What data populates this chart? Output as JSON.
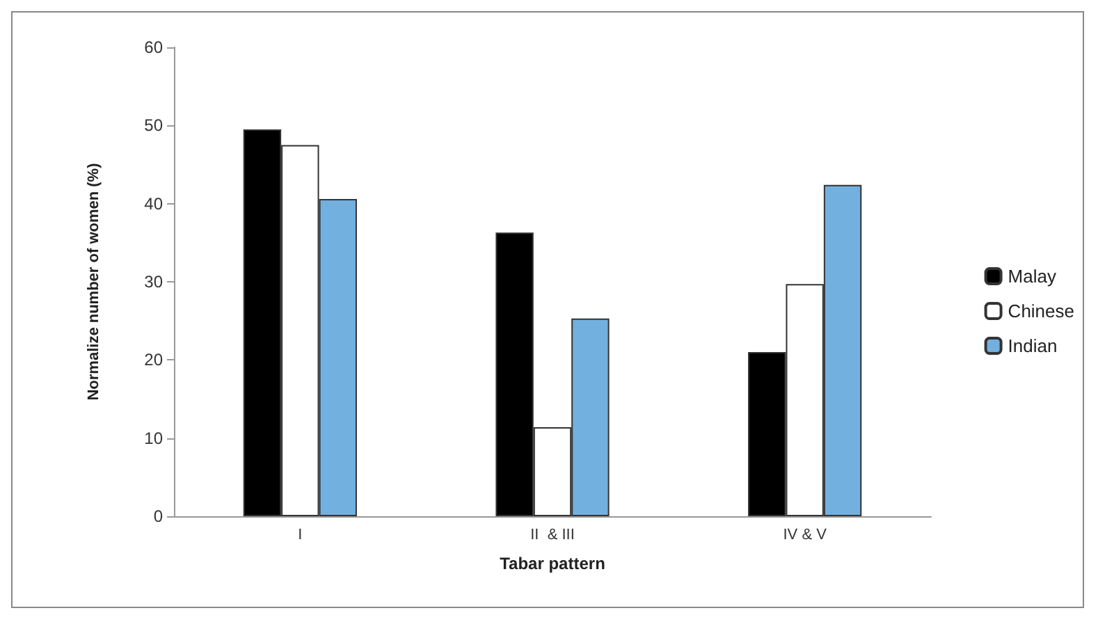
{
  "chart_data": {
    "type": "bar",
    "xlabel": "Tabar pattern",
    "ylabel": "Normalize number of women (%)",
    "categories": [
      "I",
      "II  & III",
      "IV & V"
    ],
    "series": [
      {
        "name": "Malay",
        "color": "#000000",
        "values": [
          49.5,
          36.3,
          21
        ]
      },
      {
        "name": "Chinese",
        "color": "#ffffff",
        "values": [
          47.5,
          11.4,
          29.7
        ]
      },
      {
        "name": "Indian",
        "color": "#72b0e0",
        "values": [
          40.6,
          25.3,
          42.4
        ]
      }
    ],
    "ylim": [
      0,
      60
    ],
    "yticks": [
      0,
      10,
      20,
      30,
      40,
      50,
      60
    ],
    "grid": false,
    "legend": "right"
  }
}
